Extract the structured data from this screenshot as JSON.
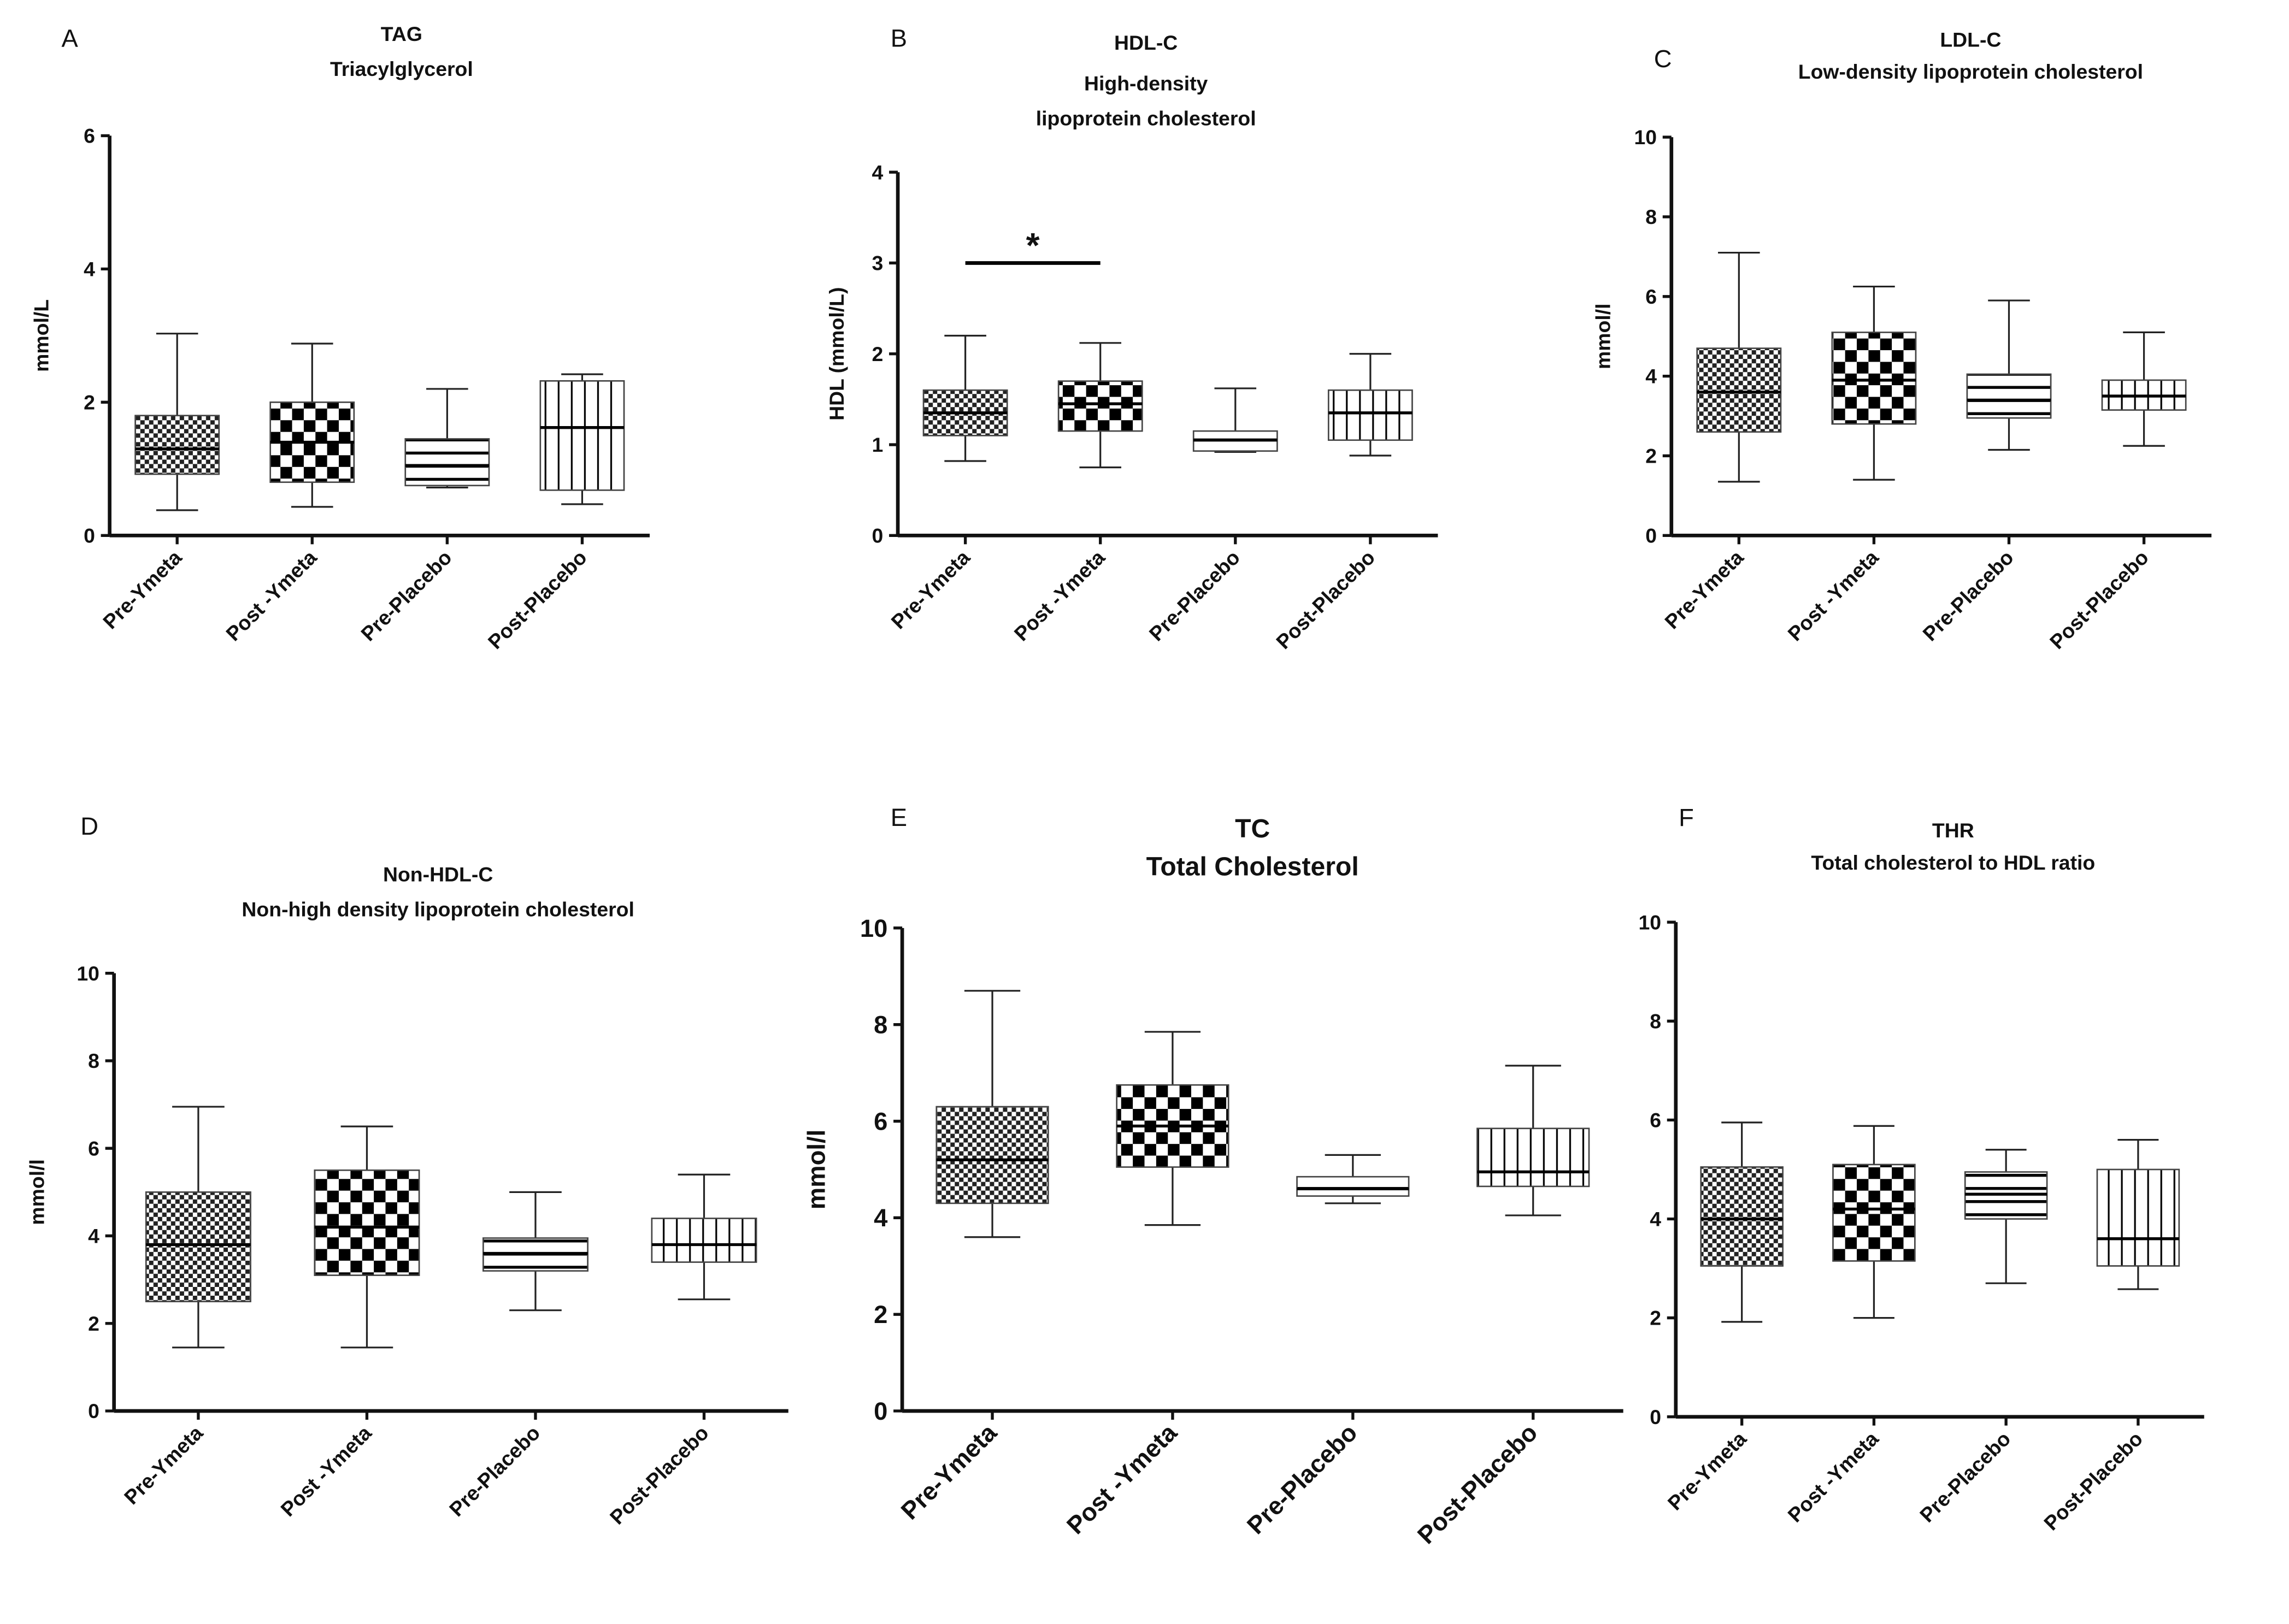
{
  "chart_data": [
    {
      "type": "box",
      "panel": "A",
      "title": "TAG",
      "subtitle": [
        "Triacylglycerol"
      ],
      "ylabel": "mmol/L",
      "categories": [
        "Pre-Ymeta",
        "Post -Ymeta",
        "Pre-Placebo",
        "Post-Placebo"
      ],
      "boxes": [
        {
          "min": 0.38,
          "q1": 0.92,
          "median": 1.3,
          "q3": 1.8,
          "max": 3.03
        },
        {
          "min": 0.43,
          "q1": 0.8,
          "median": 1.4,
          "q3": 2.0,
          "max": 2.88
        },
        {
          "min": 0.72,
          "q1": 0.75,
          "median": 1.05,
          "q3": 1.45,
          "max": 2.2
        },
        {
          "min": 0.47,
          "q1": 0.68,
          "median": 1.62,
          "q3": 2.32,
          "max": 2.42
        }
      ],
      "ylim": [
        0,
        6
      ],
      "yticks": [
        0,
        2,
        4,
        6
      ]
    },
    {
      "type": "box",
      "panel": "B",
      "title": "HDL-C",
      "subtitle": [
        "High-density",
        "lipoprotein cholesterol"
      ],
      "ylabel": "HDL (mmol/L)",
      "categories": [
        "Pre-Ymeta",
        "Post -Ymeta",
        "Pre-Placebo",
        "Post-Placebo"
      ],
      "boxes": [
        {
          "min": 0.82,
          "q1": 1.1,
          "median": 1.35,
          "q3": 1.6,
          "max": 2.2
        },
        {
          "min": 0.75,
          "q1": 1.15,
          "median": 1.45,
          "q3": 1.7,
          "max": 2.12
        },
        {
          "min": 0.92,
          "q1": 0.93,
          "median": 1.05,
          "q3": 1.15,
          "max": 1.62
        },
        {
          "min": 0.88,
          "q1": 1.05,
          "median": 1.35,
          "q3": 1.6,
          "max": 2.0
        }
      ],
      "significance": {
        "label": "*",
        "y": 3.0,
        "between": [
          "Pre-Ymeta",
          "Post -Ymeta"
        ]
      },
      "ylim": [
        0,
        4
      ],
      "yticks": [
        0,
        1,
        2,
        3,
        4
      ]
    },
    {
      "type": "box",
      "panel": "C",
      "title": "LDL-C",
      "subtitle": [
        "Low-density lipoprotein cholesterol"
      ],
      "ylabel": "mmol/l",
      "categories": [
        "Pre-Ymeta",
        "Post -Ymeta",
        "Pre-Placebo",
        "Post-Placebo"
      ],
      "boxes": [
        {
          "min": 1.35,
          "q1": 2.6,
          "median": 3.6,
          "q3": 4.7,
          "max": 7.1
        },
        {
          "min": 1.4,
          "q1": 2.8,
          "median": 3.9,
          "q3": 5.1,
          "max": 6.25
        },
        {
          "min": 2.15,
          "q1": 2.95,
          "median": 3.4,
          "q3": 4.05,
          "max": 5.9
        },
        {
          "min": 2.25,
          "q1": 3.15,
          "median": 3.5,
          "q3": 3.9,
          "max": 5.1
        }
      ],
      "ylim": [
        0,
        10
      ],
      "yticks": [
        0,
        2,
        4,
        6,
        8,
        10
      ]
    },
    {
      "type": "box",
      "panel": "D",
      "title": "Non-HDL-C",
      "subtitle": [
        "Non-high density lipoprotein cholesterol"
      ],
      "ylabel": "mmol/l",
      "categories": [
        "Pre-Ymeta",
        "Post -Ymeta",
        "Pre-Placebo",
        "Post-Placebo"
      ],
      "boxes": [
        {
          "min": 1.45,
          "q1": 2.5,
          "median": 3.8,
          "q3": 5.0,
          "max": 6.95
        },
        {
          "min": 1.45,
          "q1": 3.1,
          "median": 4.2,
          "q3": 5.5,
          "max": 6.5
        },
        {
          "min": 2.3,
          "q1": 3.2,
          "median": 3.6,
          "q3": 3.95,
          "max": 5.0
        },
        {
          "min": 2.55,
          "q1": 3.4,
          "median": 3.8,
          "q3": 4.4,
          "max": 5.4
        }
      ],
      "ylim": [
        0,
        10
      ],
      "yticks": [
        0,
        2,
        4,
        6,
        8,
        10
      ]
    },
    {
      "type": "box",
      "panel": "E",
      "title": "TC",
      "subtitle": [
        "Total Cholesterol"
      ],
      "ylabel": "mmol/l",
      "categories": [
        "Pre-Ymeta",
        "Post -Ymeta",
        "Pre-Placebo",
        "Post-Placebo"
      ],
      "boxes": [
        {
          "min": 3.6,
          "q1": 4.3,
          "median": 5.2,
          "q3": 6.3,
          "max": 8.7
        },
        {
          "min": 3.85,
          "q1": 5.05,
          "median": 5.9,
          "q3": 6.75,
          "max": 7.85
        },
        {
          "min": 4.3,
          "q1": 4.45,
          "median": 4.6,
          "q3": 4.85,
          "max": 5.3
        },
        {
          "min": 4.05,
          "q1": 4.65,
          "median": 4.95,
          "q3": 5.85,
          "max": 7.15
        }
      ],
      "ylim": [
        0,
        10
      ],
      "yticks": [
        0,
        2,
        4,
        6,
        8,
        10
      ]
    },
    {
      "type": "box",
      "panel": "F",
      "title": "THR",
      "subtitle": [
        "Total cholesterol to HDL ratio"
      ],
      "categories": [
        "Pre-Ymeta",
        "Post -Ymeta",
        "Pre-Placebo",
        "Post-Placebo"
      ],
      "boxes": [
        {
          "min": 1.92,
          "q1": 3.05,
          "median": 4.0,
          "q3": 5.05,
          "max": 5.95
        },
        {
          "min": 2.0,
          "q1": 3.15,
          "median": 4.2,
          "q3": 5.1,
          "max": 5.88
        },
        {
          "min": 2.7,
          "q1": 4.0,
          "median": 4.5,
          "q3": 4.95,
          "max": 5.4
        },
        {
          "min": 2.58,
          "q1": 3.05,
          "median": 3.6,
          "q3": 5.0,
          "max": 5.6
        }
      ],
      "ylim": [
        0,
        10
      ],
      "yticks": [
        0,
        2,
        4,
        6,
        8,
        10
      ]
    }
  ]
}
